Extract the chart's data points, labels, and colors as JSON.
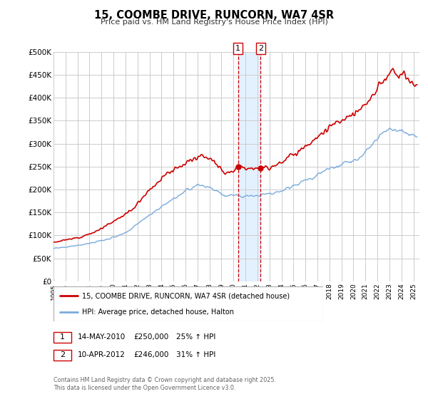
{
  "title": "15, COOMBE DRIVE, RUNCORN, WA7 4SR",
  "subtitle": "Price paid vs. HM Land Registry's House Price Index (HPI)",
  "ylabel_ticks": [
    "£0",
    "£50K",
    "£100K",
    "£150K",
    "£200K",
    "£250K",
    "£300K",
    "£350K",
    "£400K",
    "£450K",
    "£500K"
  ],
  "ylim": [
    0,
    500000
  ],
  "xlim_start": 1995.0,
  "xlim_end": 2025.5,
  "line1_color": "#cc0000",
  "line2_color": "#7aaadd",
  "vline1_x": 2010.37,
  "vline2_x": 2012.27,
  "vline_color": "#cc0000",
  "legend_line1": "15, COOMBE DRIVE, RUNCORN, WA7 4SR (detached house)",
  "legend_line2": "HPI: Average price, detached house, Halton",
  "table_row1": [
    "1",
    "14-MAY-2010",
    "£250,000",
    "25% ↑ HPI"
  ],
  "table_row2": [
    "2",
    "10-APR-2012",
    "£246,000",
    "31% ↑ HPI"
  ],
  "footer": "Contains HM Land Registry data © Crown copyright and database right 2025.\nThis data is licensed under the Open Government Licence v3.0.",
  "bg_color": "#ffffff",
  "grid_color": "#cccccc",
  "shade_color": "#ddeeff",
  "sale1_y": 250000,
  "sale2_y": 246000
}
